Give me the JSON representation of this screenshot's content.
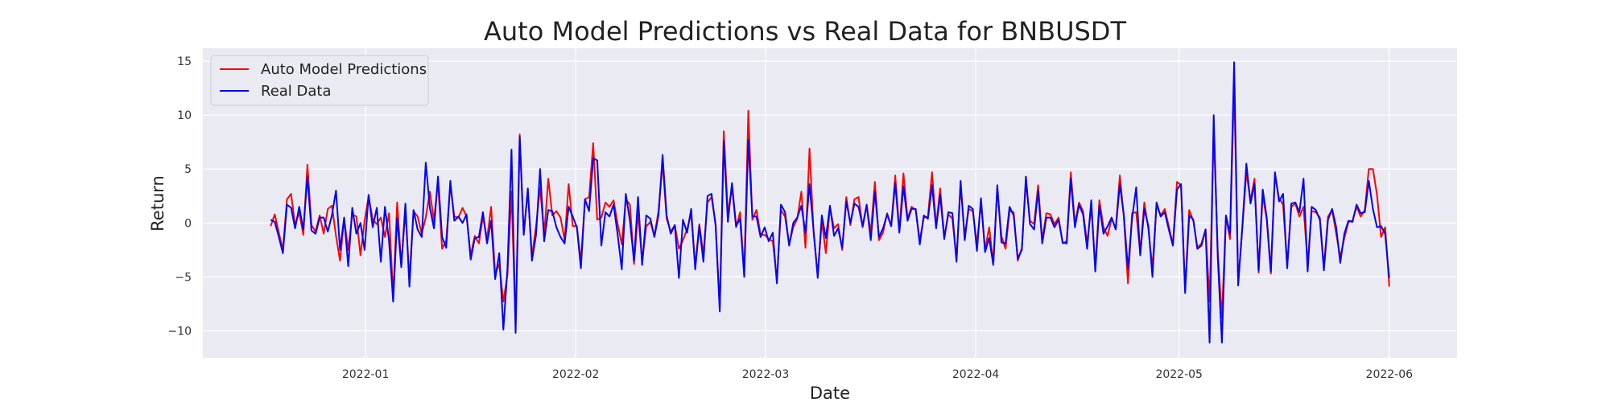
{
  "chart_data": {
    "type": "line",
    "title": "Auto Model Predictions vs Real Data for BNBUSDT",
    "xlabel": "Date",
    "ylabel": "Return",
    "x_start": "2021-12-18",
    "x_end": "2022-06-01",
    "xlim": [
      "2021-12-08",
      "2022-06-11"
    ],
    "ylim": [
      -12.5,
      16.2
    ],
    "x_ticks": [
      "2022-01-01",
      "2022-02-01",
      "2022-03-01",
      "2022-04-01",
      "2022-05-01",
      "2022-06-01"
    ],
    "x_tick_labels": [
      "2022-01",
      "2022-02",
      "2022-03",
      "2022-04",
      "2022-05",
      "2022-06"
    ],
    "y_ticks": [
      -10,
      -5,
      0,
      5,
      10,
      15
    ],
    "y_tick_labels": [
      "−10",
      "−5",
      "0",
      "5",
      "10",
      "15"
    ],
    "grid": true,
    "legend_position": "top-left",
    "background_color": "#eaeaf2",
    "series": [
      {
        "name": "Auto Model Predictions",
        "color": "#ff0000",
        "values": [
          -0.3,
          0.8,
          -0.9,
          -2.5,
          2.2,
          2.7,
          -0.2,
          1.0,
          -1.1,
          5.4,
          -0.2,
          -0.8,
          0.7,
          -1.0,
          1.3,
          1.6,
          -1.2,
          -3.5,
          0.4,
          -2.5,
          0.8,
          0.6,
          -3.0,
          0.2,
          2.5,
          0.3,
          -0.1,
          0.5,
          -1.3,
          0.9,
          -6.8,
          1.9,
          -3.9,
          1.1,
          -5.2,
          1.1,
          0.6,
          -1.0,
          0.5,
          2.9,
          0.2,
          3.8,
          -2.4,
          -1.6,
          3.5,
          0.6,
          0.5,
          1.4,
          0.6,
          -3.0,
          -1.2,
          -1.9,
          0.6,
          -1.5,
          1.5,
          -4.8,
          -3.8,
          -7.3,
          -4.8,
          2.9,
          -9.6,
          8.2,
          -0.9,
          2.9,
          -3.1,
          -0.3,
          3.3,
          -1.1,
          4.1,
          0.7,
          1.1,
          0.5,
          -1.6,
          3.6,
          -0.3,
          -0.3,
          -3.6,
          2.2,
          2.4,
          7.4,
          0.3,
          0.5,
          1.9,
          1.5,
          2.1,
          -0.1,
          -2.0,
          2.2,
          1.7,
          -3.8,
          1.0,
          -3.6,
          -0.3,
          0.1,
          -1.2,
          1.1,
          5.6,
          0.4,
          -0.8,
          -0.2,
          -2.4,
          -1.6,
          -0.6,
          0.9,
          -4.0,
          -0.1,
          -2.9,
          1.9,
          2.4,
          -0.1,
          -7.9,
          8.5,
          0.8,
          3.3,
          -0.4,
          1.0,
          -4.7,
          10.4,
          0.3,
          1.2,
          -1.1,
          -1.1,
          -1.5,
          -1.7,
          -5.3,
          1.2,
          0.6,
          -2.0,
          -0.4,
          0.4,
          2.9,
          -2.3,
          6.9,
          -0.9,
          -4.8,
          0.2,
          -2.8,
          1.4,
          -0.5,
          -0.1,
          -2.5,
          2.4,
          -0.2,
          2.2,
          2.4,
          -0.4,
          1.6,
          -0.9,
          3.8,
          -1.6,
          -0.9,
          0.9,
          -0.3,
          4.4,
          -0.8,
          4.6,
          0.4,
          1.5,
          1.2,
          -1.6,
          0.5,
          0.6,
          4.7,
          -0.3,
          3.2,
          -1.3,
          0.8,
          0.4,
          -3.4,
          3.5,
          -1.2,
          1.3,
          1.1,
          -2.0,
          1.9,
          -2.5,
          -0.4,
          -3.8,
          3.2,
          -1.2,
          -2.4,
          1.1,
          1.0,
          -3.5,
          -2.3,
          3.8,
          0.2,
          -0.1,
          3.5,
          -1.6,
          0.9,
          0.8,
          -0.1,
          0.5,
          -1.9,
          -1.7,
          4.7,
          -0.1,
          1.9,
          1.1,
          -1.9,
          1.5,
          -4.1,
          2.1,
          -0.4,
          -1.2,
          0.4,
          -0.5,
          4.4,
          0.5,
          -5.6,
          0.9,
          1.0,
          -2.8,
          1.9,
          -0.6,
          -4.2,
          1.7,
          0.7,
          1.3,
          -0.3,
          -2.0,
          3.8,
          3.5,
          -6.2,
          1.2,
          0.2,
          -2.3,
          -1.9,
          -0.6,
          -7.3,
          8.6,
          -2.7,
          -8.8,
          0.6,
          -1.5,
          13.0,
          -5.5,
          -0.6,
          4.7,
          2.1,
          4.1,
          -4.6,
          2.6,
          0.3,
          -4.7,
          4.4,
          2.3,
          1.7,
          -4.0,
          1.5,
          1.8,
          0.6,
          1.5,
          -3.8,
          1.1,
          1.0,
          0.5,
          -4.1,
          0.6,
          1.2,
          -1.0,
          -3.2,
          -1.4,
          0.1,
          0.2,
          1.5,
          0.6,
          1.2,
          5.0,
          5.0,
          2.6,
          -1.3,
          -0.4,
          -5.9
        ]
      },
      {
        "name": "Real Data",
        "color": "#0000ff",
        "values": [
          0.3,
          0.1,
          -1.3,
          -2.8,
          1.7,
          1.4,
          -0.5,
          1.5,
          -0.6,
          4.3,
          -0.7,
          -1.0,
          0.5,
          0.5,
          -0.8,
          0.7,
          3.0,
          -2.5,
          0.5,
          -4.0,
          1.4,
          -1.0,
          0.0,
          -2.5,
          2.6,
          -0.4,
          1.4,
          -3.6,
          1.5,
          -1.7,
          -7.3,
          0.5,
          -4.1,
          1.8,
          -5.9,
          1.2,
          -0.6,
          -1.3,
          5.6,
          1.4,
          -0.5,
          4.3,
          -1.3,
          -2.3,
          3.9,
          0.2,
          0.6,
          0.0,
          0.8,
          -3.4,
          -1.4,
          -1.3,
          1.0,
          -1.9,
          0.2,
          -5.2,
          -2.8,
          -9.9,
          -4.2,
          6.8,
          -10.2,
          8.0,
          -1.1,
          3.2,
          -3.5,
          -1.1,
          5.0,
          -1.7,
          1.2,
          1.1,
          -0.4,
          -1.3,
          -1.9,
          1.5,
          0.6,
          -0.4,
          -4.2,
          2.2,
          1.1,
          6.0,
          5.8,
          -2.1,
          1.0,
          0.6,
          1.7,
          -1.1,
          -4.3,
          2.7,
          0.2,
          -3.5,
          2.4,
          -3.9,
          0.7,
          0.4,
          -1.3,
          0.7,
          6.3,
          0.7,
          -1.0,
          -0.2,
          -5.1,
          0.3,
          -0.9,
          1.3,
          -4.3,
          -0.3,
          -3.6,
          2.5,
          2.7,
          -0.3,
          -8.2,
          7.6,
          0.1,
          3.7,
          -0.3,
          0.4,
          -5.0,
          7.7,
          0.6,
          0.6,
          -1.3,
          -0.4,
          -1.7,
          -0.9,
          -5.6,
          1.7,
          1.0,
          -2.1,
          0.0,
          0.5,
          1.6,
          -0.9,
          3.6,
          -0.7,
          -5.1,
          0.7,
          -1.4,
          1.6,
          -1.2,
          -0.5,
          -2.3,
          2.0,
          0.0,
          1.8,
          1.5,
          -0.3,
          1.7,
          -1.6,
          2.9,
          -1.3,
          -0.5,
          0.8,
          -0.3,
          3.7,
          -0.9,
          3.4,
          0.2,
          1.3,
          1.3,
          -2.0,
          0.7,
          0.4,
          3.5,
          -0.5,
          2.6,
          -1.5,
          1.0,
          0.9,
          -3.6,
          3.9,
          -1.6,
          1.6,
          1.3,
          -2.6,
          2.3,
          -2.7,
          -1.4,
          -3.9,
          3.5,
          -1.8,
          -1.9,
          1.5,
          0.7,
          -3.3,
          -2.5,
          4.3,
          -0.1,
          -0.6,
          3.0,
          -1.9,
          0.5,
          0.5,
          -0.4,
          0.3,
          -1.8,
          -1.9,
          4.1,
          -0.4,
          1.7,
          0.8,
          -2.4,
          2.1,
          -4.5,
          1.6,
          -1.0,
          -0.3,
          0.5,
          -0.6,
          3.6,
          0.7,
          -4.3,
          0.4,
          3.3,
          -3.0,
          1.3,
          -0.3,
          -5.0,
          1.9,
          0.6,
          1.0,
          -0.6,
          -2.1,
          3.1,
          3.6,
          -6.5,
          0.7,
          0.3,
          -2.4,
          -2.1,
          -0.6,
          -11.1,
          10.0,
          -3.3,
          -11.1,
          0.7,
          -1.0,
          14.9,
          -5.8,
          -0.4,
          5.5,
          1.8,
          3.6,
          -4.4,
          3.1,
          0.5,
          -4.5,
          4.7,
          2.0,
          2.7,
          -4.2,
          1.8,
          1.9,
          1.0,
          4.1,
          -4.5,
          1.5,
          1.2,
          0.3,
          -4.4,
          0.3,
          1.3,
          -0.4,
          -3.7,
          -1.0,
          0.2,
          0.1,
          1.7,
          0.9,
          1.0,
          3.9,
          1.3,
          -0.4,
          -0.3,
          -1.0,
          -5.1
        ]
      }
    ]
  }
}
